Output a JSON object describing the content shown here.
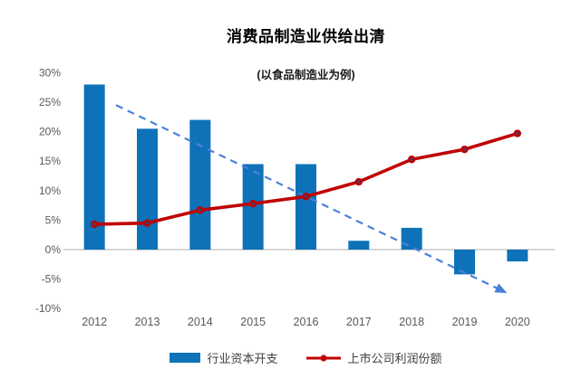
{
  "title": "消费品制造业供给出清",
  "subtitle": "(以食品制造业为例)",
  "colors": {
    "bar": "#0e72b8",
    "line": "#c00000",
    "marker_core": "#3f3f74",
    "trend": "#4a80d9",
    "axis": "#c9c9c9",
    "tick_text": "#595959",
    "legend_text": "#3f3f3f"
  },
  "chart_data": {
    "type": "bar",
    "subtype": "bar+line combo",
    "title": "消费品制造业供给出清",
    "subtitle": "(以食品制造业为例)",
    "categories": [
      "2012",
      "2013",
      "2014",
      "2015",
      "2016",
      "2017",
      "2018",
      "2019",
      "2020"
    ],
    "series": [
      {
        "name": "行业资本开支",
        "type": "bar",
        "values": [
          28,
          20.5,
          22,
          14.5,
          14.5,
          1.5,
          3.7,
          -4.2,
          -2
        ]
      },
      {
        "name": "上市公司利润份额",
        "type": "line",
        "values": [
          4.3,
          4.5,
          6.7,
          7.8,
          9,
          11.5,
          15.3,
          17,
          19.7
        ]
      }
    ],
    "trendline": {
      "style": "dashed",
      "arrow": true,
      "start": {
        "x": 0.41,
        "value": 24.5
      },
      "end": {
        "x": 7.65,
        "value": -6.7
      }
    },
    "y_axis": {
      "ylim": [
        -10,
        30
      ],
      "step": 5,
      "grid": false,
      "ticks": [
        {
          "value": 30,
          "label": "30%"
        },
        {
          "value": 25,
          "label": "25%"
        },
        {
          "value": 20,
          "label": "20%"
        },
        {
          "value": 15,
          "label": "15%"
        },
        {
          "value": 10,
          "label": "10%"
        },
        {
          "value": 5,
          "label": "5%"
        },
        {
          "value": 0,
          "label": "0%"
        },
        {
          "value": -5,
          "label": "-5%"
        },
        {
          "value": -10,
          "label": "-10%"
        }
      ]
    },
    "legend_position": "bottom"
  }
}
